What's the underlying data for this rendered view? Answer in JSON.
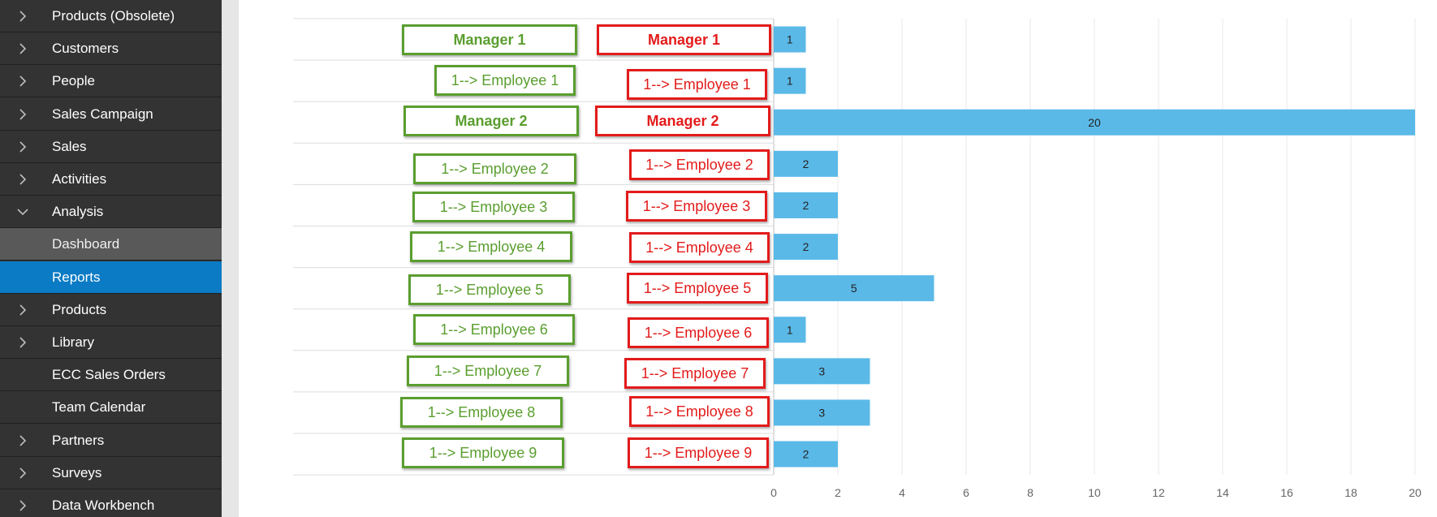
{
  "sidebar": {
    "items": [
      {
        "label": "Products (Obsolete)",
        "chevron": "chevron-right-icon"
      },
      {
        "label": "Customers",
        "chevron": "chevron-right-icon"
      },
      {
        "label": "People",
        "chevron": "chevron-right-icon"
      },
      {
        "label": "Sales Campaign",
        "chevron": "chevron-right-icon"
      },
      {
        "label": "Sales",
        "chevron": "chevron-right-icon"
      },
      {
        "label": "Activities",
        "chevron": "chevron-right-icon"
      },
      {
        "label": "Analysis",
        "chevron": "chevron-down-icon"
      },
      {
        "label": "Dashboard",
        "chevron": ""
      },
      {
        "label": "Reports",
        "chevron": ""
      },
      {
        "label": "Products",
        "chevron": "chevron-right-icon"
      },
      {
        "label": "Library",
        "chevron": "chevron-right-icon"
      },
      {
        "label": "ECC Sales Orders",
        "chevron": ""
      },
      {
        "label": "Team Calendar",
        "chevron": ""
      },
      {
        "label": "Partners",
        "chevron": "chevron-right-icon"
      },
      {
        "label": "Surveys",
        "chevron": "chevron-right-icon"
      },
      {
        "label": "Data Workbench",
        "chevron": "chevron-right-icon"
      }
    ],
    "active": "Reports",
    "colors": {
      "background": "#333333",
      "active": "#0a7bc4",
      "sub": "#595959"
    }
  },
  "annotations": {
    "green_labels": [
      "Manager 1",
      "1--> Employee 1",
      "Manager 2",
      "1--> Employee 2",
      "1--> Employee 3",
      "1--> Employee 4",
      "1--> Employee 5",
      "1--> Employee 6",
      "1--> Employee 7",
      "1--> Employee 8",
      "1--> Employee 9"
    ],
    "red_labels": [
      "Manager 1",
      "1--> Employee 1",
      "Manager 2",
      "1--> Employee 2",
      "1--> Employee 3",
      "1--> Employee 4",
      "1--> Employee 5",
      "1--> Employee 6",
      "1--> Employee 7",
      "1--> Employee 8",
      "1--> Employee 9"
    ],
    "colors": {
      "green": "#5a9e2f",
      "red": "#e31b1b"
    }
  },
  "chart_data": {
    "type": "bar",
    "orientation": "horizontal",
    "categories": [
      "Manager 1",
      "1--> Employee 1",
      "Manager 2",
      "1--> Employee 2",
      "1--> Employee 3",
      "1--> Employee 4",
      "1--> Employee 5",
      "1--> Employee 6",
      "1--> Employee 7",
      "1--> Employee 8",
      "1--> Employee 9"
    ],
    "values": [
      1,
      1,
      20,
      2,
      2,
      2,
      5,
      1,
      3,
      3,
      2
    ],
    "data_labels": [
      "1",
      "1",
      "20",
      "2",
      "2",
      "2",
      "5",
      "1",
      "3",
      "3",
      "2"
    ],
    "xlim": [
      0,
      20
    ],
    "x_ticks": [
      "0",
      "2",
      "4",
      "6",
      "8",
      "10",
      "12",
      "14",
      "16",
      "18",
      "20"
    ],
    "grid": true,
    "bar_color": "#5bb9e8"
  }
}
